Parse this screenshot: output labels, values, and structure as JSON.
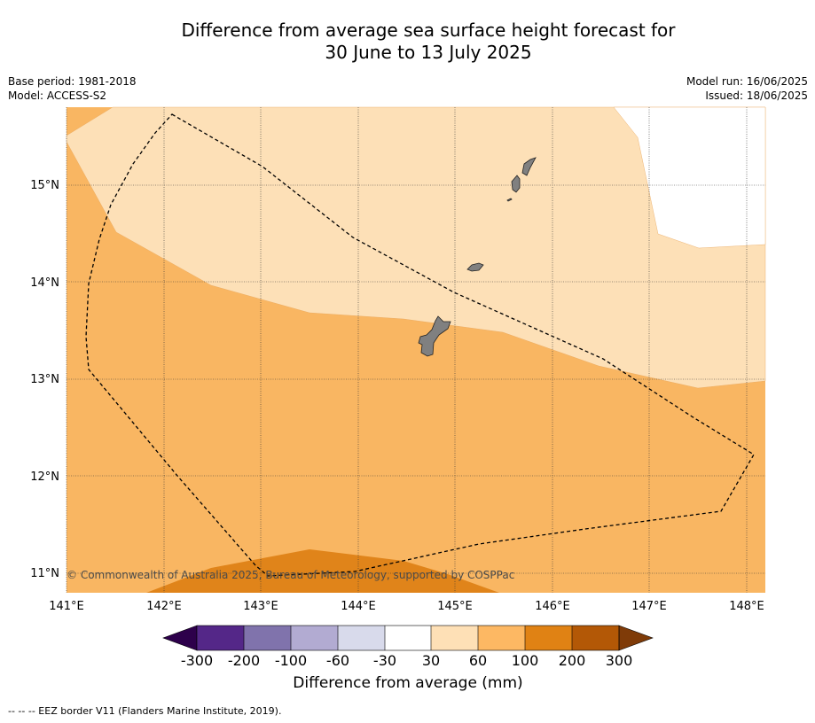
{
  "title": {
    "line1": "Difference from average sea surface height forecast for",
    "line2": "30 June to 13 July 2025"
  },
  "meta": {
    "base_period": "Base period: 1981-2018",
    "model": "Model: ACCESS-S2",
    "model_run": "Model run: 16/06/2025",
    "issued": "Issued: 18/06/2025"
  },
  "map": {
    "lon_labels": [
      "141°E",
      "142°E",
      "143°E",
      "144°E",
      "145°E",
      "146°E",
      "147°E",
      "148°E"
    ],
    "lat_labels": [
      "15°N",
      "14°N",
      "13°N",
      "12°N",
      "11°N"
    ],
    "copyright": "© Commonwealth of Australia 2025, Bureau of Meteorology, supported by COSPPac",
    "regions": [
      {
        "name": "islands",
        "fill": "#808080"
      }
    ]
  },
  "colorbar": {
    "title": "Difference from average (mm)",
    "tick_labels": [
      "-300",
      "-200",
      "-100",
      "-60",
      "-30",
      "30",
      "60",
      "100",
      "200",
      "300"
    ],
    "colors": [
      "#2d004b",
      "#542788",
      "#8073ac",
      "#b2abd2",
      "#d8daeb",
      "#ffffff",
      "#fee0b6",
      "#fdb863",
      "#e08214",
      "#b35806",
      "#7f3b08"
    ]
  },
  "footnote": "--  --  -- EEZ border V11 (Flanders Marine Institute, 2019)."
}
